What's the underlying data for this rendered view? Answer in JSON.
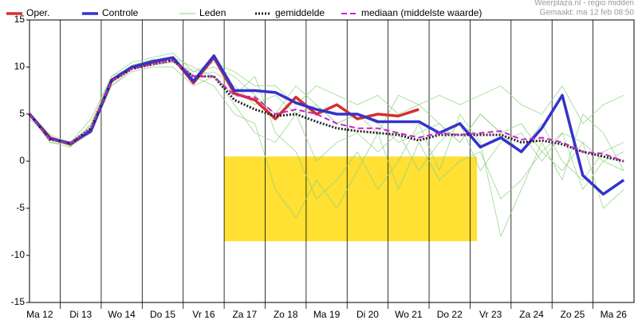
{
  "chart_data": {
    "type": "line",
    "source": "Weerplaza.nl - regio midden",
    "made": "Gemaakt: ma 12 feb 08:50",
    "x": [
      6,
      18,
      30,
      42,
      54,
      66,
      78,
      90,
      102,
      114,
      126,
      138,
      150,
      162,
      174,
      186,
      198,
      210,
      222,
      234,
      246,
      258,
      270,
      282,
      294,
      306,
      318,
      330,
      342,
      354
    ],
    "xlim": [
      6,
      360
    ],
    "xticks": [
      {
        "value": 12,
        "label": "Ma 12"
      },
      {
        "value": 36,
        "label": "Di 13"
      },
      {
        "value": 60,
        "label": "Wo 14"
      },
      {
        "value": 84,
        "label": "Do 15"
      },
      {
        "value": 108,
        "label": "Vr 16"
      },
      {
        "value": 132,
        "label": "Za 17"
      },
      {
        "value": 156,
        "label": "Zo 18"
      },
      {
        "value": 180,
        "label": "Ma 19"
      },
      {
        "value": 204,
        "label": "Di 20"
      },
      {
        "value": 228,
        "label": "Wo 21"
      },
      {
        "value": 252,
        "label": "Do 22"
      },
      {
        "value": 276,
        "label": "Vr 23"
      },
      {
        "value": 300,
        "label": "Za 24"
      },
      {
        "value": 324,
        "label": "Zo 25"
      },
      {
        "value": 348,
        "label": "Ma 26"
      }
    ],
    "ylim": [
      -15,
      15
    ],
    "yticks": [
      -15,
      -10,
      -5,
      0,
      5,
      10,
      15
    ],
    "highlight": {
      "x": [
        120,
        268
      ],
      "y": [
        0.5,
        -8.5
      ],
      "color": "#ffe033"
    },
    "series": [
      {
        "name": "Leden",
        "color": "#8fd27f",
        "style": "thin",
        "values": [
          5,
          2,
          1.5,
          4,
          9,
          10.5,
          11,
          11.5,
          9.5,
          10,
          9,
          7,
          5,
          8,
          6,
          4,
          5,
          3,
          7,
          6,
          4,
          2,
          5,
          3,
          1,
          4,
          0,
          -2,
          1,
          2
        ]
      },
      {
        "name": "Leden",
        "color": "#8fd27f",
        "style": "thin",
        "values": [
          4.5,
          2.5,
          2,
          3,
          8,
          9.5,
          10,
          10,
          8,
          9,
          6,
          3,
          2,
          5,
          0,
          2,
          3,
          1,
          3,
          -1,
          2,
          4,
          -1,
          2,
          3,
          0,
          3,
          -3,
          0,
          -1
        ]
      },
      {
        "name": "Leden",
        "color": "#8fd27f",
        "style": "thin",
        "values": [
          5,
          2,
          1.8,
          3.5,
          8.5,
          10,
          10.5,
          11,
          9,
          8,
          5,
          4,
          -3,
          -6,
          -2,
          -5,
          -1,
          3,
          -3,
          2,
          -2,
          0,
          1,
          -4,
          -2,
          1,
          -1,
          2,
          -5,
          -3
        ]
      },
      {
        "name": "Leden",
        "color": "#8fd27f",
        "style": "thin",
        "values": [
          5.2,
          2.8,
          2,
          4.5,
          9,
          10,
          10.2,
          10.5,
          9,
          9.5,
          8,
          6,
          7,
          5,
          6,
          4,
          5,
          4,
          2,
          3,
          4,
          2,
          5,
          3,
          4,
          1,
          3,
          2,
          0,
          1
        ]
      },
      {
        "name": "Leden",
        "color": "#8fd27f",
        "style": "thin",
        "values": [
          4.8,
          2.3,
          1.6,
          3,
          8,
          9.8,
          10.5,
          11,
          10,
          9,
          7,
          9,
          3,
          1,
          -4,
          -2,
          1,
          -3,
          0,
          4,
          -1,
          5,
          2,
          -8,
          -3,
          2,
          -2,
          5,
          3,
          -1
        ]
      },
      {
        "name": "Leden",
        "color": "#8fd27f",
        "style": "thin",
        "values": [
          5,
          2.4,
          2,
          3.8,
          8.7,
          10.2,
          10.8,
          10.6,
          9.5,
          10.5,
          9.5,
          8,
          8,
          6,
          8,
          7,
          6,
          7,
          5,
          6,
          7,
          6,
          7,
          8,
          6,
          5,
          8,
          4,
          6,
          7
        ]
      },
      {
        "name": "Oper.",
        "color": "#d43030",
        "style": "thick",
        "values": [
          5,
          2.5,
          1.8,
          3.3,
          8.5,
          10,
          10.5,
          11,
          8.3,
          11,
          7.2,
          6.5,
          4.5,
          6.8,
          5,
          6,
          4.5,
          5,
          4.8,
          5.5,
          null,
          null,
          null,
          null,
          null,
          null,
          null,
          null,
          null,
          null
        ]
      },
      {
        "name": "Controle",
        "color": "#3333cc",
        "style": "thick",
        "values": [
          5,
          2.4,
          1.9,
          3.2,
          8.6,
          10,
          10.6,
          11,
          8.5,
          11.2,
          7.5,
          7.5,
          7.3,
          6.2,
          5.5,
          5,
          5,
          4.2,
          4.2,
          4.2,
          3,
          4,
          1.5,
          2.5,
          1,
          3.5,
          7,
          -1.5,
          -3.5,
          -2
        ]
      },
      {
        "name": "gemiddelde",
        "color": "#222222",
        "style": "dotted",
        "values": [
          5,
          2.3,
          1.9,
          3.5,
          8.5,
          9.8,
          10.3,
          10.7,
          9,
          9,
          6.5,
          5.5,
          4.8,
          5,
          4.2,
          3.5,
          3.2,
          3,
          2.8,
          2.2,
          2.8,
          2.8,
          2.8,
          2.8,
          2,
          2.2,
          1.8,
          1,
          0.5,
          0
        ]
      },
      {
        "name": "mediaan (middelste waarde)",
        "color": "#cc22cc",
        "style": "dashed",
        "values": [
          5,
          2.3,
          1.9,
          3.5,
          8.5,
          9.8,
          10.3,
          10.7,
          9,
          9,
          7,
          6.8,
          5,
          5.5,
          5,
          4,
          3.5,
          3.5,
          3,
          2.5,
          3,
          2.8,
          3,
          3.2,
          2.3,
          2.5,
          2,
          1,
          0.8,
          0
        ]
      }
    ]
  }
}
